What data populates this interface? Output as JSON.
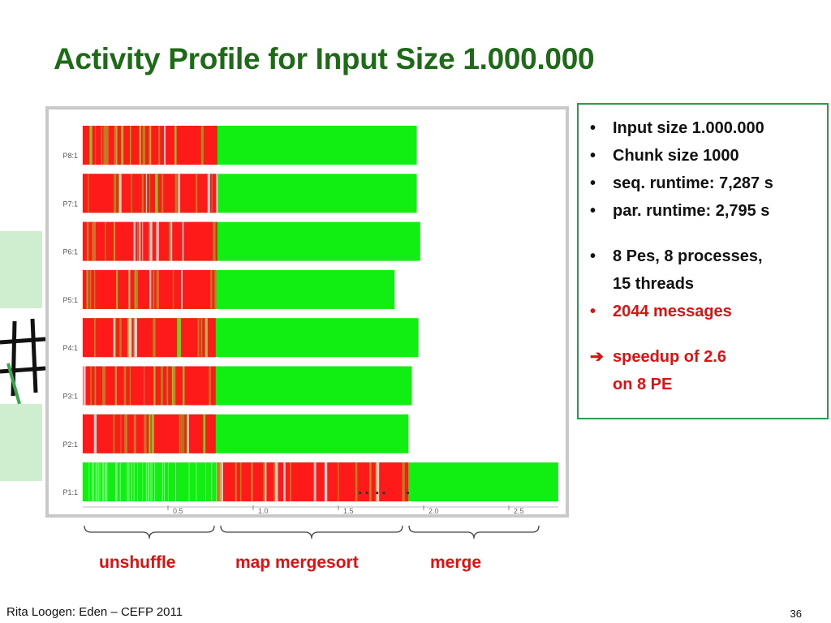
{
  "slide": {
    "title": "Activity Profile for Input Size 1.000.000",
    "footer": "Rita Loogen: Eden – CEFP 2011",
    "page_number": "36"
  },
  "info": {
    "bullets": [
      "Input size 1.000.000",
      "Chunk size 1000",
      "seq. runtime: 7,287 s",
      "par. runtime:  2,795 s"
    ],
    "pes_line1": "8 Pes, 8 processes,",
    "pes_line2": "15 threads",
    "messages": "2044 messages",
    "speedup_line1": "speedup of  2.6",
    "speedup_line2": "on 8 PE"
  },
  "phases": {
    "labels": [
      "unshuffle",
      "map mergesort",
      "merge"
    ]
  },
  "chart_data": {
    "type": "activity-profile",
    "x_ticks": [
      "0.5",
      "1.0",
      "1.5",
      "2.0",
      "2.5"
    ],
    "rows": [
      {
        "name": "P8:1",
        "red_until": 0.79,
        "end": 1.96
      },
      {
        "name": "P7:1",
        "red_until": 0.79,
        "end": 1.96
      },
      {
        "name": "P6:1",
        "red_until": 0.79,
        "end": 1.98
      },
      {
        "name": "P5:1",
        "red_until": 0.78,
        "end": 1.83
      },
      {
        "name": "P4:1",
        "red_until": 0.78,
        "end": 1.97
      },
      {
        "name": "P3:1",
        "red_until": 0.78,
        "end": 1.93
      },
      {
        "name": "P2:1",
        "red_until": 0.78,
        "end": 1.91
      },
      {
        "name": "P1:1",
        "red_from": 0.79,
        "red_until": 1.91,
        "end": 2.79
      }
    ],
    "colors": {
      "running": "#11ee11",
      "blocked": "#ff1a1a",
      "runnable": "#b58a22"
    }
  }
}
